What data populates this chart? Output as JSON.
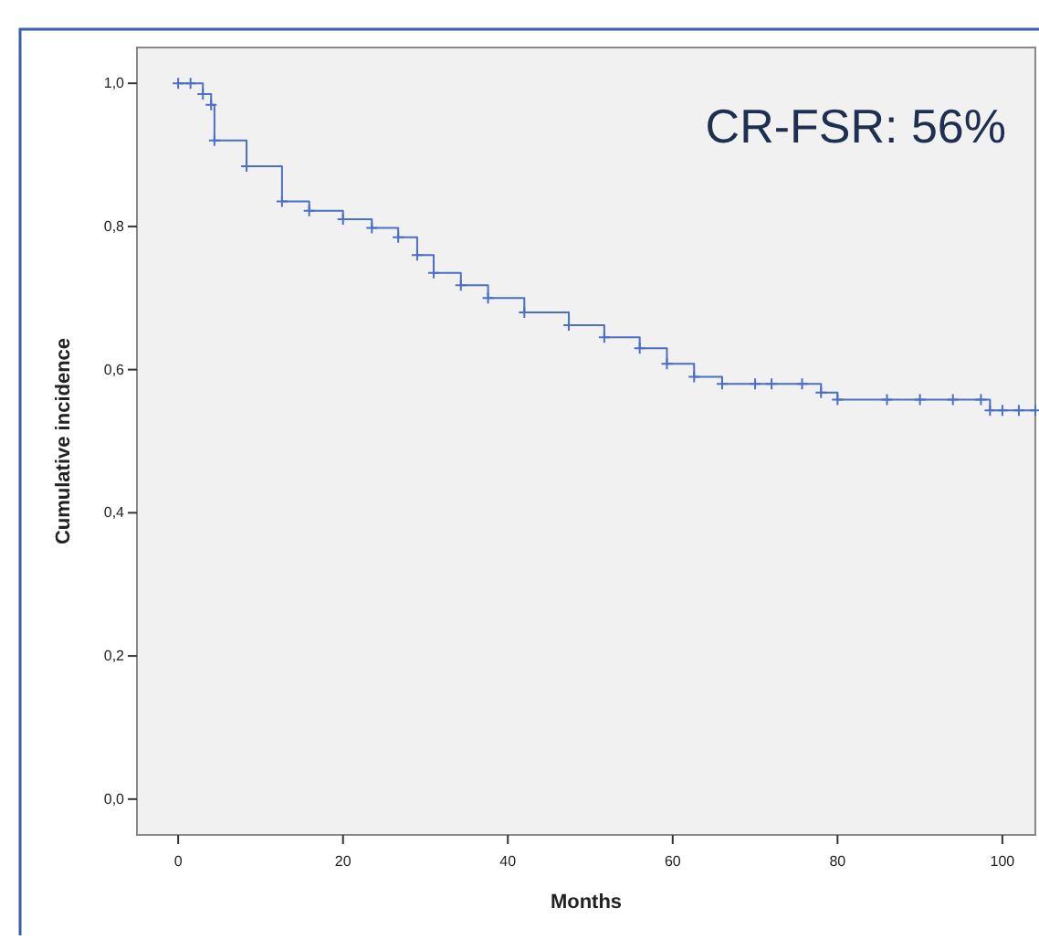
{
  "chart_data": {
    "type": "step",
    "xlabel": "Months",
    "ylabel": "Cumulative incidence",
    "annotations": [
      "CR-FSR: 56%"
    ],
    "xlim": [
      -5,
      104
    ],
    "xticks": [
      0,
      20,
      40,
      60,
      80,
      100
    ],
    "ylim": [
      -0.05,
      1.05
    ],
    "yticks": [
      {
        "value": 0,
        "label": "0,0"
      },
      {
        "value": 0.2,
        "label": "0,2"
      },
      {
        "value": 0.4,
        "label": "0,4"
      },
      {
        "value": 0.6,
        "label": "0,6"
      },
      {
        "value": 0.8,
        "label": "0,8"
      },
      {
        "value": 1,
        "label": "1,0"
      }
    ],
    "grid": false,
    "marker": "cross",
    "line_style": "solid",
    "series": [
      {
        "color": "#4a6fc4",
        "x": [
          0,
          1.5,
          3,
          4,
          4.4,
          8.3,
          12.6,
          15.9,
          20,
          23.5,
          26.7,
          29,
          31,
          34.3,
          37.6,
          42,
          47.4,
          51.7,
          56,
          59.3,
          62.6,
          66,
          70,
          72,
          75.7,
          78,
          80,
          86,
          90,
          94,
          97.4,
          98.5,
          100,
          102,
          104
        ],
        "values": [
          1,
          1,
          0.985,
          0.97,
          0.92,
          0.884,
          0.835,
          0.822,
          0.81,
          0.798,
          0.785,
          0.76,
          0.735,
          0.718,
          0.7,
          0.68,
          0.662,
          0.645,
          0.63,
          0.608,
          0.59,
          0.58,
          0.58,
          0.58,
          0.58,
          0.568,
          0.558,
          0.558,
          0.558,
          0.558,
          0.558,
          0.543,
          0.543,
          0.543,
          0.543
        ]
      }
    ]
  }
}
